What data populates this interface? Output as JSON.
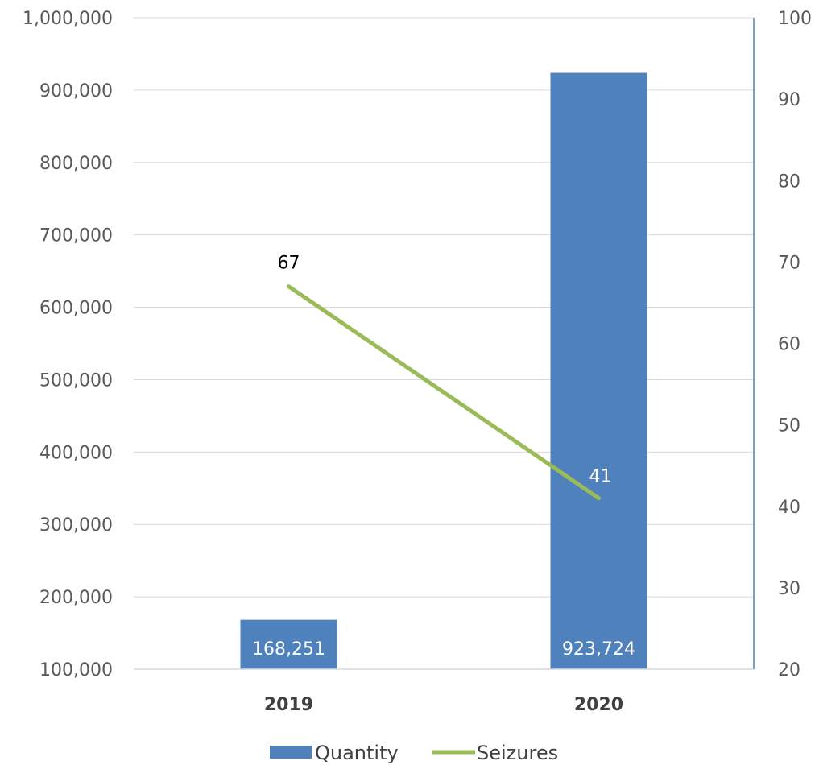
{
  "chart_data": {
    "type": "bar",
    "categories": [
      "2019",
      "2020"
    ],
    "series": [
      {
        "name": "Quantity",
        "type": "bar",
        "axis": "left",
        "color": "#4f81bd",
        "values": [
          168251,
          923724
        ],
        "labels": [
          "168,251",
          "923,724"
        ]
      },
      {
        "name": "Seizures",
        "type": "line",
        "axis": "right",
        "color": "#9bbb59",
        "values": [
          67,
          41
        ],
        "labels": [
          "67",
          "41"
        ]
      }
    ],
    "y_left": {
      "min": 100000,
      "max": 1000000,
      "step": 100000,
      "tick_labels": [
        "100,000",
        "200,000",
        "300,000",
        "400,000",
        "500,000",
        "600,000",
        "700,000",
        "800,000",
        "900,000",
        "1,000,000"
      ]
    },
    "y_right": {
      "min": 20,
      "max": 100,
      "step": 10,
      "tick_labels": [
        "20",
        "30",
        "40",
        "50",
        "60",
        "70",
        "80",
        "90",
        "100"
      ]
    },
    "grid": true,
    "legend_position": "bottom",
    "legend": [
      "Quantity",
      "Seizures"
    ]
  }
}
